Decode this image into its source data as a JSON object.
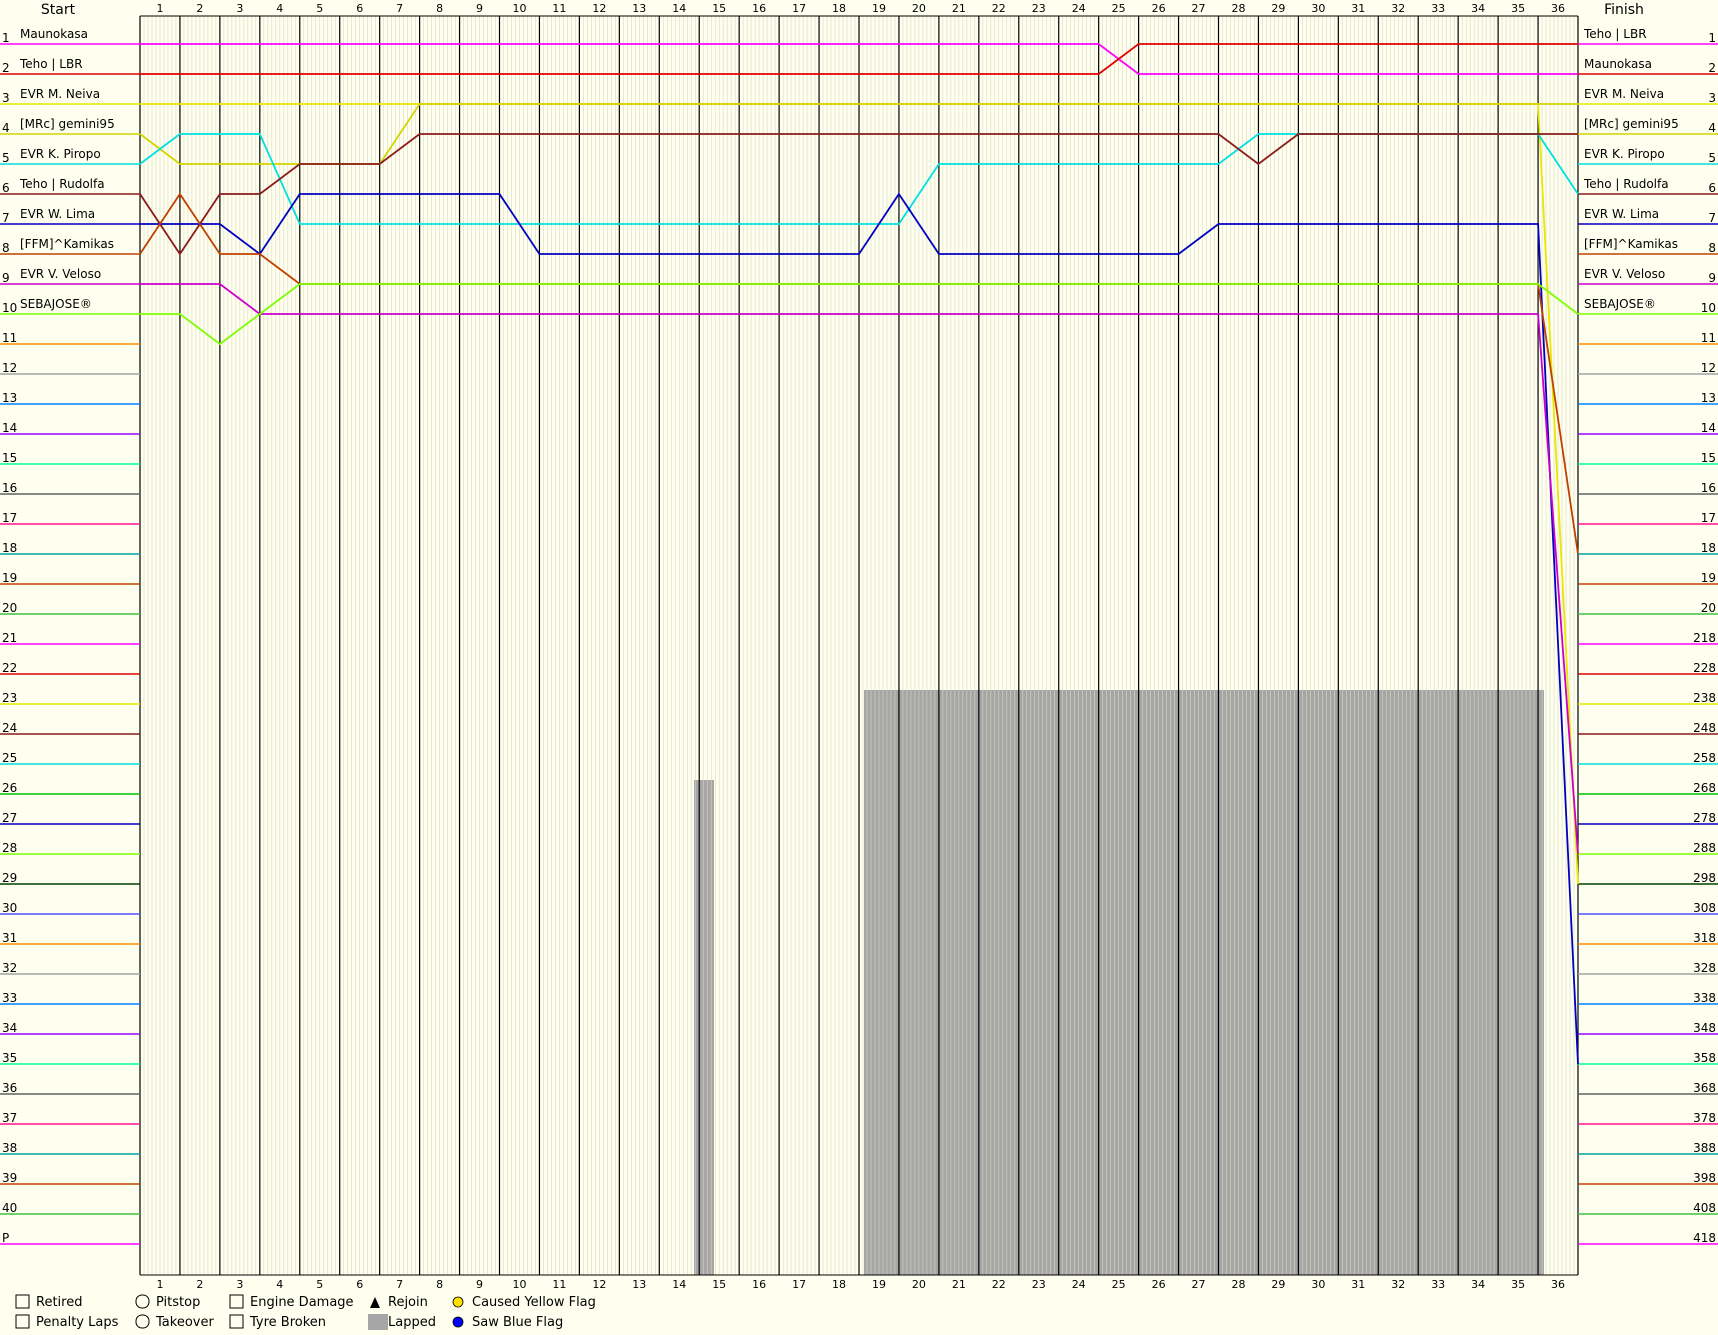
{
  "chart_data": {
    "type": "line",
    "title": "",
    "start_label": "Start",
    "finish_label": "Finish",
    "laps": 36,
    "positions": 41,
    "start_positions": [
      "1",
      "2",
      "3",
      "4",
      "5",
      "6",
      "7",
      "8",
      "9",
      "10",
      "11",
      "12",
      "13",
      "14",
      "15",
      "16",
      "17",
      "18",
      "19",
      "20",
      "21",
      "22",
      "23",
      "24",
      "25",
      "26",
      "27",
      "28",
      "29",
      "30",
      "31",
      "32",
      "33",
      "34",
      "35",
      "36",
      "37",
      "38",
      "39",
      "40",
      "P"
    ],
    "finish_positions": [
      "1",
      "2",
      "3",
      "4",
      "5",
      "6",
      "7",
      "8",
      "9",
      "10",
      "11",
      "12",
      "13",
      "14",
      "15",
      "16",
      "17",
      "18",
      "19",
      "20",
      "218",
      "228",
      "238",
      "248",
      "258",
      "268",
      "278",
      "288",
      "298",
      "308",
      "318",
      "328",
      "338",
      "348",
      "358",
      "368",
      "378",
      "388",
      "398",
      "408",
      "418"
    ],
    "colors": [
      "#ff00ff",
      "#e00000",
      "#e8e800",
      "#8b1a1a",
      "#00e0e0",
      "#00c000",
      "#0000c0",
      "#7fff00",
      "#004000",
      "#5050ff",
      "#ff8c00",
      "#a0a0a0",
      "#0080ff",
      "#9900ff",
      "#00ff90",
      "#606060",
      "#ff1493",
      "#00a0a0",
      "#c04000",
      "#40c040"
    ],
    "drivers": [
      {
        "start": "Maunokasa",
        "finish": "Teho | LBR",
        "color": "#ff00ff",
        "path": [
          1,
          1,
          1,
          1,
          1,
          1,
          1,
          1,
          1,
          1,
          1,
          1,
          1,
          1,
          1,
          1,
          1,
          1,
          1,
          1,
          1,
          1,
          1,
          1,
          1,
          2,
          2,
          2,
          2,
          2,
          2,
          2,
          2,
          2,
          2,
          2,
          2
        ]
      },
      {
        "start": "Teho | LBR",
        "finish": "Maunokasa",
        "color": "#e00000",
        "path": [
          2,
          2,
          2,
          2,
          2,
          2,
          2,
          2,
          2,
          2,
          2,
          2,
          2,
          2,
          2,
          2,
          2,
          2,
          2,
          2,
          2,
          2,
          2,
          2,
          2,
          1,
          1,
          1,
          1,
          1,
          1,
          1,
          1,
          1,
          1,
          1,
          1
        ]
      },
      {
        "start": "EVR M. Neiva",
        "finish": "EVR M. Neiva",
        "color": "#e8e800",
        "path": [
          3,
          3,
          3,
          3,
          3,
          3,
          3,
          3,
          3,
          3,
          3,
          3,
          3,
          3,
          3,
          3,
          3,
          3,
          3,
          3,
          3,
          3,
          3,
          3,
          3,
          3,
          3,
          3,
          3,
          3,
          3,
          3,
          3,
          3,
          3,
          3,
          29
        ]
      },
      {
        "start": "[MRc] gemini95",
        "finish": "[MRc] gemini95",
        "color": "#d4d400",
        "path": [
          4,
          5,
          5,
          5,
          5,
          5,
          5,
          3,
          3,
          3,
          3,
          3,
          3,
          3,
          3,
          3,
          3,
          3,
          3,
          3,
          3,
          3,
          3,
          3,
          3,
          3,
          3,
          3,
          3,
          3,
          3,
          3,
          3,
          3,
          3,
          3,
          3
        ]
      },
      {
        "start": "EVR K. Piropo",
        "finish": "EVR K. Piropo",
        "color": "#00e0e0",
        "path": [
          5,
          4,
          4,
          4,
          7,
          7,
          7,
          7,
          7,
          7,
          7,
          7,
          7,
          7,
          7,
          7,
          7,
          7,
          7,
          7,
          5,
          5,
          5,
          5,
          5,
          5,
          5,
          5,
          4,
          4,
          4,
          4,
          4,
          4,
          4,
          4,
          6
        ]
      },
      {
        "start": "Teho | Rudolfa",
        "finish": "Teho | Rudolfa",
        "color": "#8b1a1a",
        "path": [
          6,
          8,
          6,
          6,
          5,
          5,
          5,
          4,
          4,
          4,
          4,
          4,
          4,
          4,
          4,
          4,
          4,
          4,
          4,
          4,
          4,
          4,
          4,
          4,
          4,
          4,
          4,
          4,
          5,
          4,
          4,
          4,
          4,
          4,
          4,
          4,
          4
        ]
      },
      {
        "start": "EVR W. Lima",
        "finish": "EVR W. Lima",
        "color": "#0000c0",
        "path": [
          7,
          7,
          7,
          8,
          6,
          6,
          6,
          6,
          6,
          6,
          8,
          8,
          8,
          8,
          8,
          8,
          8,
          8,
          8,
          6,
          8,
          8,
          8,
          8,
          8,
          8,
          8,
          7,
          7,
          7,
          7,
          7,
          7,
          7,
          7,
          7,
          35
        ]
      },
      {
        "start": "[FFM]^Kamikas",
        "finish": "[FFM]^Kamikas",
        "color": "#c04000",
        "path": [
          8,
          6,
          8,
          8,
          9,
          9,
          9,
          9,
          9,
          9,
          9,
          9,
          9,
          9,
          9,
          9,
          9,
          9,
          9,
          9,
          9,
          9,
          9,
          9,
          9,
          9,
          9,
          9,
          9,
          9,
          9,
          9,
          9,
          9,
          9,
          9,
          18
        ]
      },
      {
        "start": "EVR V. Veloso",
        "finish": "EVR V. Veloso",
        "color": "#cc00cc",
        "path": [
          9,
          9,
          9,
          10,
          10,
          10,
          10,
          10,
          10,
          10,
          10,
          10,
          10,
          10,
          10,
          10,
          10,
          10,
          10,
          10,
          10,
          10,
          10,
          10,
          10,
          10,
          10,
          10,
          10,
          10,
          10,
          10,
          10,
          10,
          10,
          10,
          28
        ]
      },
      {
        "start": "SEBAJOSE®",
        "finish": "SEBAJOSE®",
        "color": "#7fff00",
        "path": [
          10,
          10,
          11,
          10,
          9,
          9,
          9,
          9,
          9,
          9,
          9,
          9,
          9,
          9,
          9,
          9,
          9,
          9,
          9,
          9,
          9,
          9,
          9,
          9,
          9,
          9,
          9,
          9,
          9,
          9,
          9,
          9,
          9,
          9,
          9,
          9,
          10
        ]
      }
    ]
  },
  "legend": [
    {
      "key": "retired",
      "label": "Retired"
    },
    {
      "key": "penalty",
      "label": "Penalty Laps"
    },
    {
      "key": "pitstop",
      "label": "Pitstop"
    },
    {
      "key": "takeover",
      "label": "Takeover"
    },
    {
      "key": "engine",
      "label": "Engine Damage"
    },
    {
      "key": "tyre",
      "label": "Tyre Broken"
    },
    {
      "key": "rejoin",
      "label": "Rejoin"
    },
    {
      "key": "lapped",
      "label": "Lapped"
    },
    {
      "key": "yellow",
      "label": "Caused Yellow Flag"
    },
    {
      "key": "blue",
      "label": "Saw Blue Flag"
    }
  ]
}
